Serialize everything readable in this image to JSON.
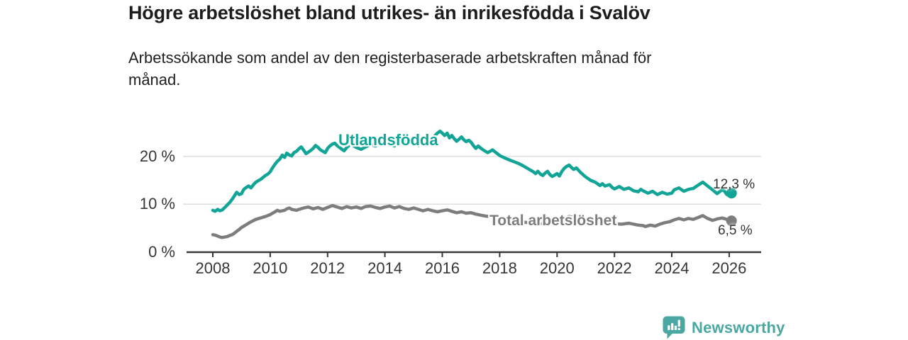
{
  "chart_data": {
    "type": "line",
    "title": "Högre arbetslöshet bland utrikes- än inrikesfödda i Svalöv",
    "subtitle": "Arbetssökande som andel av den registerbaserade arbetskraften månad för månad.",
    "grid": "horizontal-gridlines-on",
    "legend_position": "inline-labels-on-lines",
    "x_axis": {
      "range": [
        2008.0,
        2027.0
      ],
      "ticks": [
        2008,
        2010,
        2012,
        2014,
        2016,
        2018,
        2020,
        2022,
        2024,
        2026
      ]
    },
    "y_axis": {
      "unit": "%",
      "range": [
        0,
        26
      ],
      "ticks": [
        {
          "value": 0,
          "label": "0 %"
        },
        {
          "value": 10,
          "label": "10 %"
        },
        {
          "value": 20,
          "label": "20 %"
        }
      ]
    },
    "series": [
      {
        "name": "Utlandsfödda",
        "color": "#12a496",
        "end_label": "12,3 %",
        "end_value": 12.3,
        "points": [
          [
            2008.0,
            8.7
          ],
          [
            2008.08,
            8.5
          ],
          [
            2008.17,
            8.9
          ],
          [
            2008.25,
            8.6
          ],
          [
            2008.33,
            8.8
          ],
          [
            2008.42,
            9.3
          ],
          [
            2008.5,
            9.8
          ],
          [
            2008.58,
            10.3
          ],
          [
            2008.67,
            11.0
          ],
          [
            2008.75,
            11.7
          ],
          [
            2008.83,
            12.5
          ],
          [
            2008.92,
            12.0
          ],
          [
            2009.0,
            12.2
          ],
          [
            2009.08,
            13.1
          ],
          [
            2009.17,
            13.5
          ],
          [
            2009.25,
            13.8
          ],
          [
            2009.33,
            13.4
          ],
          [
            2009.42,
            14.1
          ],
          [
            2009.5,
            14.6
          ],
          [
            2009.58,
            14.9
          ],
          [
            2009.67,
            15.2
          ],
          [
            2009.75,
            15.6
          ],
          [
            2009.83,
            16.0
          ],
          [
            2009.92,
            16.3
          ],
          [
            2010.0,
            16.8
          ],
          [
            2010.08,
            17.6
          ],
          [
            2010.17,
            18.4
          ],
          [
            2010.25,
            19.0
          ],
          [
            2010.33,
            19.4
          ],
          [
            2010.42,
            20.3
          ],
          [
            2010.5,
            19.8
          ],
          [
            2010.58,
            20.7
          ],
          [
            2010.67,
            20.3
          ],
          [
            2010.75,
            20.1
          ],
          [
            2010.83,
            20.8
          ],
          [
            2010.92,
            21.1
          ],
          [
            2011.0,
            21.6
          ],
          [
            2011.08,
            22.0
          ],
          [
            2011.17,
            21.3
          ],
          [
            2011.25,
            20.6
          ],
          [
            2011.33,
            20.9
          ],
          [
            2011.42,
            21.3
          ],
          [
            2011.5,
            21.7
          ],
          [
            2011.58,
            22.3
          ],
          [
            2011.67,
            21.9
          ],
          [
            2011.75,
            21.4
          ],
          [
            2011.83,
            21.1
          ],
          [
            2011.92,
            20.8
          ],
          [
            2012.0,
            21.7
          ],
          [
            2012.08,
            22.2
          ],
          [
            2012.17,
            22.6
          ],
          [
            2012.25,
            22.8
          ],
          [
            2012.33,
            22.3
          ],
          [
            2012.42,
            21.9
          ],
          [
            2012.5,
            21.5
          ],
          [
            2012.58,
            21.2
          ],
          [
            2012.67,
            21.9
          ],
          [
            2012.75,
            22.3
          ],
          [
            2012.83,
            22.6
          ],
          [
            2012.92,
            22.2
          ],
          [
            2013.0,
            21.9
          ],
          [
            2013.17,
            21.5
          ],
          [
            2013.33,
            22.0
          ],
          [
            2013.5,
            22.5
          ],
          [
            2013.67,
            22.2
          ],
          [
            2013.83,
            22.8
          ],
          [
            2014.0,
            23.3
          ],
          [
            2014.17,
            22.7
          ],
          [
            2014.33,
            22.2
          ],
          [
            2014.5,
            23.0
          ],
          [
            2014.67,
            23.5
          ],
          [
            2014.83,
            23.1
          ],
          [
            2015.0,
            22.8
          ],
          [
            2015.17,
            22.3
          ],
          [
            2015.33,
            22.9
          ],
          [
            2015.5,
            23.4
          ],
          [
            2015.67,
            23.9
          ],
          [
            2015.83,
            24.9
          ],
          [
            2015.92,
            25.3
          ],
          [
            2016.0,
            24.9
          ],
          [
            2016.08,
            24.4
          ],
          [
            2016.17,
            24.9
          ],
          [
            2016.25,
            23.9
          ],
          [
            2016.33,
            24.4
          ],
          [
            2016.42,
            23.7
          ],
          [
            2016.5,
            23.2
          ],
          [
            2016.58,
            23.6
          ],
          [
            2016.67,
            24.1
          ],
          [
            2016.75,
            23.5
          ],
          [
            2016.83,
            23.1
          ],
          [
            2016.92,
            23.4
          ],
          [
            2017.0,
            23.0
          ],
          [
            2017.08,
            22.3
          ],
          [
            2017.17,
            21.7
          ],
          [
            2017.25,
            22.2
          ],
          [
            2017.33,
            21.8
          ],
          [
            2017.42,
            21.4
          ],
          [
            2017.5,
            21.1
          ],
          [
            2017.58,
            20.8
          ],
          [
            2017.67,
            21.1
          ],
          [
            2017.75,
            21.4
          ],
          [
            2017.83,
            21.0
          ],
          [
            2017.92,
            20.6
          ],
          [
            2018.0,
            20.2
          ],
          [
            2018.17,
            19.7
          ],
          [
            2018.33,
            19.3
          ],
          [
            2018.5,
            18.9
          ],
          [
            2018.67,
            18.5
          ],
          [
            2018.83,
            18.0
          ],
          [
            2019.0,
            17.4
          ],
          [
            2019.17,
            16.8
          ],
          [
            2019.25,
            16.4
          ],
          [
            2019.33,
            16.9
          ],
          [
            2019.42,
            16.3
          ],
          [
            2019.5,
            16.0
          ],
          [
            2019.58,
            16.5
          ],
          [
            2019.67,
            16.9
          ],
          [
            2019.75,
            16.2
          ],
          [
            2019.83,
            15.8
          ],
          [
            2019.92,
            16.1
          ],
          [
            2020.0,
            16.4
          ],
          [
            2020.08,
            15.9
          ],
          [
            2020.17,
            16.9
          ],
          [
            2020.25,
            17.5
          ],
          [
            2020.33,
            17.9
          ],
          [
            2020.42,
            18.2
          ],
          [
            2020.5,
            17.7
          ],
          [
            2020.58,
            17.3
          ],
          [
            2020.67,
            17.6
          ],
          [
            2020.75,
            17.1
          ],
          [
            2020.83,
            16.6
          ],
          [
            2020.92,
            16.1
          ],
          [
            2021.0,
            15.7
          ],
          [
            2021.17,
            15.0
          ],
          [
            2021.33,
            14.6
          ],
          [
            2021.5,
            13.9
          ],
          [
            2021.58,
            14.3
          ],
          [
            2021.67,
            13.8
          ],
          [
            2021.83,
            14.1
          ],
          [
            2021.92,
            13.5
          ],
          [
            2022.0,
            13.2
          ],
          [
            2022.17,
            13.7
          ],
          [
            2022.33,
            13.1
          ],
          [
            2022.5,
            13.4
          ],
          [
            2022.67,
            12.8
          ],
          [
            2022.83,
            12.6
          ],
          [
            2022.92,
            13.1
          ],
          [
            2023.0,
            12.8
          ],
          [
            2023.17,
            12.3
          ],
          [
            2023.33,
            12.7
          ],
          [
            2023.5,
            12.0
          ],
          [
            2023.67,
            12.5
          ],
          [
            2023.83,
            12.1
          ],
          [
            2024.0,
            12.3
          ],
          [
            2024.08,
            13.0
          ],
          [
            2024.25,
            13.4
          ],
          [
            2024.42,
            12.7
          ],
          [
            2024.58,
            13.1
          ],
          [
            2024.75,
            13.3
          ],
          [
            2024.92,
            14.0
          ],
          [
            2025.08,
            14.6
          ],
          [
            2025.25,
            13.8
          ],
          [
            2025.42,
            13.0
          ],
          [
            2025.58,
            12.2
          ],
          [
            2025.75,
            13.0
          ],
          [
            2025.83,
            12.8
          ],
          [
            2025.92,
            12.0
          ],
          [
            2026.0,
            11.9
          ],
          [
            2026.08,
            12.3
          ]
        ]
      },
      {
        "name": "Total arbetslöshet",
        "color": "#7d7d7d",
        "end_label": "6,5 %",
        "end_value": 6.5,
        "points": [
          [
            2008.0,
            3.6
          ],
          [
            2008.08,
            3.5
          ],
          [
            2008.17,
            3.3
          ],
          [
            2008.25,
            3.1
          ],
          [
            2008.33,
            3.0
          ],
          [
            2008.42,
            3.1
          ],
          [
            2008.5,
            3.2
          ],
          [
            2008.58,
            3.4
          ],
          [
            2008.67,
            3.6
          ],
          [
            2008.75,
            3.9
          ],
          [
            2008.83,
            4.3
          ],
          [
            2008.92,
            4.7
          ],
          [
            2009.0,
            5.1
          ],
          [
            2009.17,
            5.7
          ],
          [
            2009.33,
            6.3
          ],
          [
            2009.5,
            6.8
          ],
          [
            2009.67,
            7.1
          ],
          [
            2009.83,
            7.4
          ],
          [
            2010.0,
            7.8
          ],
          [
            2010.08,
            8.1
          ],
          [
            2010.17,
            8.4
          ],
          [
            2010.25,
            8.7
          ],
          [
            2010.33,
            8.5
          ],
          [
            2010.5,
            8.7
          ],
          [
            2010.58,
            9.0
          ],
          [
            2010.67,
            9.2
          ],
          [
            2010.75,
            8.9
          ],
          [
            2010.92,
            8.7
          ],
          [
            2011.0,
            8.9
          ],
          [
            2011.17,
            9.2
          ],
          [
            2011.33,
            9.4
          ],
          [
            2011.5,
            9.0
          ],
          [
            2011.67,
            9.3
          ],
          [
            2011.83,
            8.9
          ],
          [
            2012.0,
            9.3
          ],
          [
            2012.17,
            9.7
          ],
          [
            2012.33,
            9.4
          ],
          [
            2012.5,
            9.1
          ],
          [
            2012.67,
            9.5
          ],
          [
            2012.83,
            9.2
          ],
          [
            2013.0,
            9.4
          ],
          [
            2013.17,
            9.1
          ],
          [
            2013.33,
            9.5
          ],
          [
            2013.5,
            9.6
          ],
          [
            2013.67,
            9.3
          ],
          [
            2013.83,
            9.1
          ],
          [
            2014.0,
            9.4
          ],
          [
            2014.17,
            9.6
          ],
          [
            2014.33,
            9.2
          ],
          [
            2014.5,
            9.5
          ],
          [
            2014.67,
            9.1
          ],
          [
            2014.83,
            8.9
          ],
          [
            2015.0,
            9.2
          ],
          [
            2015.17,
            8.9
          ],
          [
            2015.33,
            8.6
          ],
          [
            2015.5,
            8.9
          ],
          [
            2015.67,
            8.6
          ],
          [
            2015.83,
            8.4
          ],
          [
            2016.0,
            8.6
          ],
          [
            2016.17,
            8.8
          ],
          [
            2016.33,
            8.5
          ],
          [
            2016.5,
            8.2
          ],
          [
            2016.67,
            8.4
          ],
          [
            2016.83,
            8.1
          ],
          [
            2017.0,
            8.2
          ],
          [
            2017.17,
            7.9
          ],
          [
            2017.33,
            7.7
          ],
          [
            2017.5,
            7.5
          ],
          [
            2017.67,
            7.4
          ],
          [
            2017.83,
            7.2
          ],
          [
            2018.0,
            7.0
          ],
          [
            2018.25,
            6.7
          ],
          [
            2018.5,
            6.5
          ],
          [
            2018.75,
            6.3
          ],
          [
            2019.0,
            6.1
          ],
          [
            2019.25,
            6.0
          ],
          [
            2019.5,
            5.9
          ],
          [
            2019.75,
            6.0
          ],
          [
            2020.0,
            6.2
          ],
          [
            2020.25,
            6.9
          ],
          [
            2020.42,
            7.4
          ],
          [
            2020.58,
            7.2
          ],
          [
            2020.75,
            7.0
          ],
          [
            2021.0,
            6.8
          ],
          [
            2021.25,
            6.5
          ],
          [
            2021.5,
            6.3
          ],
          [
            2021.75,
            6.1
          ],
          [
            2022.0,
            5.9
          ],
          [
            2022.25,
            5.8
          ],
          [
            2022.5,
            6.0
          ],
          [
            2022.67,
            5.8
          ],
          [
            2022.83,
            5.6
          ],
          [
            2023.0,
            5.5
          ],
          [
            2023.08,
            5.3
          ],
          [
            2023.25,
            5.6
          ],
          [
            2023.42,
            5.4
          ],
          [
            2023.58,
            5.8
          ],
          [
            2023.75,
            6.1
          ],
          [
            2023.92,
            6.3
          ],
          [
            2024.08,
            6.7
          ],
          [
            2024.25,
            7.0
          ],
          [
            2024.42,
            6.7
          ],
          [
            2024.58,
            7.0
          ],
          [
            2024.75,
            6.8
          ],
          [
            2024.92,
            7.2
          ],
          [
            2025.08,
            7.6
          ],
          [
            2025.25,
            7.0
          ],
          [
            2025.42,
            6.6
          ],
          [
            2025.58,
            6.9
          ],
          [
            2025.75,
            7.1
          ],
          [
            2025.92,
            6.8
          ],
          [
            2026.0,
            6.5
          ],
          [
            2026.08,
            6.5
          ]
        ]
      }
    ]
  },
  "footer": {
    "brand": "Newsworthy",
    "brand_color": "#4ba7a1",
    "logo_icon": "bar-chart-speech-bubble-icon"
  }
}
